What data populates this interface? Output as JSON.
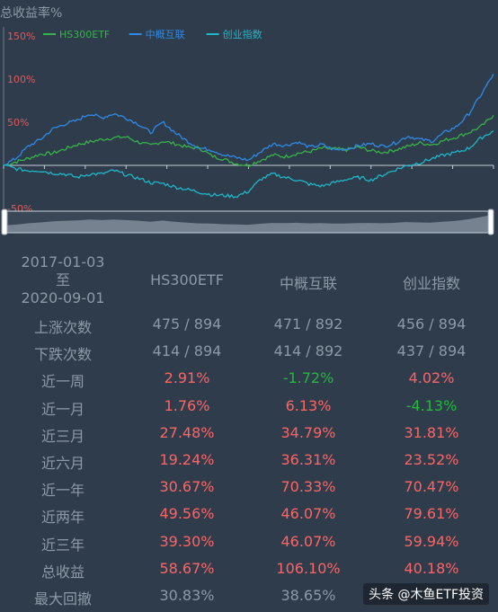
{
  "chart_data": {
    "type": "line",
    "title": "总收益率%",
    "yunit": "%",
    "ylim": [
      -50,
      150
    ],
    "yticks": [
      "150%",
      "100%",
      "50%",
      "-50%"
    ],
    "legend_position": "top-left",
    "series": [
      {
        "name": "HS300ETF",
        "color": "#37b34a",
        "values": [
          0,
          4,
          8,
          13,
          14,
          19,
          24,
          27,
          30,
          32,
          33,
          27,
          23,
          28,
          25,
          21,
          20,
          11,
          7,
          2,
          0,
          6,
          12,
          10,
          14,
          16,
          20,
          19,
          18,
          21,
          17,
          15,
          18,
          22,
          26,
          24,
          29,
          33,
          38,
          45,
          58
        ]
      },
      {
        "name": "中概互联",
        "color": "#2f8ae6",
        "values": [
          0,
          8,
          22,
          30,
          42,
          48,
          52,
          60,
          55,
          60,
          55,
          48,
          38,
          50,
          38,
          28,
          20,
          18,
          12,
          9,
          6,
          16,
          25,
          23,
          27,
          21,
          24,
          18,
          19,
          23,
          25,
          22,
          26,
          34,
          30,
          28,
          38,
          45,
          60,
          82,
          106
        ]
      },
      {
        "name": "创业指数",
        "color": "#1db8c8",
        "values": [
          0,
          -4,
          -6,
          -6,
          -9,
          -10,
          -14,
          -10,
          -10,
          -6,
          -11,
          -15,
          -20,
          -21,
          -25,
          -28,
          -31,
          -34,
          -35,
          -36,
          -30,
          -16,
          -10,
          -14,
          -17,
          -22,
          -24,
          -20,
          -16,
          -14,
          -17,
          -11,
          -5,
          0,
          3,
          8,
          12,
          15,
          20,
          32,
          40
        ]
      }
    ]
  },
  "zoom": {
    "fill_color": "#c0cad6"
  },
  "table": {
    "date_start": "2017-01-03",
    "date_sep": "至",
    "date_end": "2020-09-01",
    "columns": [
      "HS300ETF",
      "中概互联",
      "创业指数"
    ],
    "rows": [
      {
        "label": "上涨次数",
        "values": [
          "475 / 894",
          "471 / 892",
          "456 / 894"
        ],
        "tones": [
          "muted",
          "muted",
          "muted"
        ]
      },
      {
        "label": "下跌次数",
        "values": [
          "414 / 894",
          "414 / 892",
          "437 / 894"
        ],
        "tones": [
          "muted",
          "muted",
          "muted"
        ]
      },
      {
        "label": "近一周",
        "values": [
          "2.91%",
          "-1.72%",
          "4.02%"
        ],
        "tones": [
          "pos",
          "neg",
          "pos"
        ]
      },
      {
        "label": "近一月",
        "values": [
          "1.76%",
          "6.13%",
          "-4.13%"
        ],
        "tones": [
          "pos",
          "pos",
          "neg"
        ]
      },
      {
        "label": "近三月",
        "values": [
          "27.48%",
          "34.79%",
          "31.81%"
        ],
        "tones": [
          "pos",
          "pos",
          "pos"
        ]
      },
      {
        "label": "近六月",
        "values": [
          "19.24%",
          "36.31%",
          "23.52%"
        ],
        "tones": [
          "pos",
          "pos",
          "pos"
        ]
      },
      {
        "label": "近一年",
        "values": [
          "30.67%",
          "70.33%",
          "70.47%"
        ],
        "tones": [
          "pos",
          "pos",
          "pos"
        ]
      },
      {
        "label": "近两年",
        "values": [
          "49.56%",
          "46.07%",
          "79.61%"
        ],
        "tones": [
          "pos",
          "pos",
          "pos"
        ]
      },
      {
        "label": "近三年",
        "values": [
          "39.30%",
          "46.07%",
          "59.94%"
        ],
        "tones": [
          "pos",
          "pos",
          "pos"
        ]
      },
      {
        "label": "总收益",
        "values": [
          "58.67%",
          "106.10%",
          "40.18%"
        ],
        "tones": [
          "pos",
          "pos",
          "pos"
        ]
      },
      {
        "label": "最大回撤",
        "values": [
          "30.83%",
          "38.65%",
          ""
        ],
        "tones": [
          "muted",
          "muted",
          "muted"
        ]
      }
    ]
  },
  "watermark": "头条 @木鱼ETF投资"
}
